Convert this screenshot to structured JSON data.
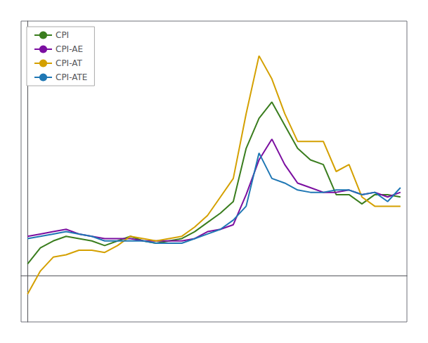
{
  "chart_data": {
    "type": "line",
    "x": [
      0,
      1,
      2,
      3,
      4,
      5,
      6,
      7,
      8,
      9,
      10,
      11,
      12,
      13,
      14,
      15,
      16,
      17,
      18,
      19,
      20,
      21,
      22,
      23,
      24,
      25,
      26,
      27,
      28,
      29
    ],
    "series": [
      {
        "name": "CPI",
        "color": "#3a7d1e",
        "values": [
          0.5,
          1.2,
          1.5,
          1.7,
          1.6,
          1.5,
          1.3,
          1.5,
          1.7,
          1.5,
          1.4,
          1.5,
          1.6,
          1.9,
          2.3,
          2.7,
          3.2,
          5.5,
          6.8,
          7.5,
          6.5,
          5.5,
          5.0,
          4.8,
          3.5,
          3.5,
          3.1,
          3.5,
          3.5,
          3.4
        ]
      },
      {
        "name": "CPI-AE",
        "color": "#7b0ea0",
        "values": [
          1.7,
          1.8,
          1.9,
          2.0,
          1.8,
          1.7,
          1.6,
          1.6,
          1.6,
          1.5,
          1.5,
          1.5,
          1.5,
          1.6,
          1.9,
          2.0,
          2.2,
          3.5,
          5.0,
          5.9,
          4.8,
          4.0,
          3.8,
          3.6,
          3.6,
          3.7,
          3.5,
          3.6,
          3.4,
          3.6
        ]
      },
      {
        "name": "CPI-AT",
        "color": "#d4a000",
        "values": [
          -0.8,
          0.2,
          0.8,
          0.9,
          1.1,
          1.1,
          1.0,
          1.3,
          1.7,
          1.6,
          1.5,
          1.6,
          1.7,
          2.1,
          2.6,
          3.4,
          4.2,
          7.0,
          9.5,
          8.5,
          7.0,
          5.8,
          5.8,
          5.8,
          4.5,
          4.8,
          3.4,
          3.0,
          3.0,
          3.0
        ]
      },
      {
        "name": "CPI-ATE",
        "color": "#1f77b4",
        "values": [
          1.6,
          1.7,
          1.8,
          1.9,
          1.8,
          1.7,
          1.5,
          1.5,
          1.5,
          1.5,
          1.4,
          1.4,
          1.4,
          1.6,
          1.8,
          2.0,
          2.4,
          3.0,
          5.3,
          4.2,
          4.0,
          3.7,
          3.6,
          3.6,
          3.7,
          3.7,
          3.5,
          3.6,
          3.2,
          3.8
        ]
      }
    ],
    "xlim": [
      -0.5,
      29.5
    ],
    "xticks": [],
    "ylim": [
      -2.0,
      11.0
    ],
    "yticks": [],
    "tick_labels": false,
    "grid": false,
    "legend": "upper left"
  }
}
